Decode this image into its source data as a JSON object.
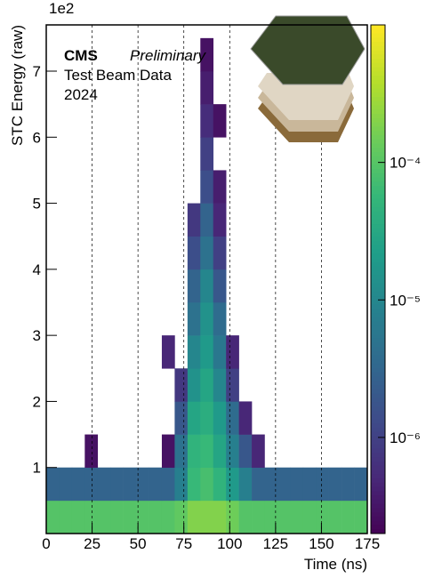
{
  "chart_data": {
    "type": "heatmap",
    "xlabel": "Time (ns)",
    "ylabel": "STC Energy (raw)",
    "y_multiplier": "1e2",
    "annotations": {
      "experiment": "CMS",
      "status": "Preliminary",
      "line1": "Test Beam Data",
      "line2": "2024"
    },
    "xlim": [
      0,
      175
    ],
    "xticks": [
      0,
      25,
      50,
      75,
      100,
      125,
      150,
      175
    ],
    "ylim": [
      0,
      7.7
    ],
    "yticks": [
      1,
      2,
      3,
      4,
      5,
      6,
      7
    ],
    "grid": true,
    "colormap": "viridis",
    "zscale": "log",
    "zlim": [
      2e-07,
      0.001
    ],
    "zticks": [
      {
        "value": 1e-06,
        "label": "10⁻⁶"
      },
      {
        "value": 1e-05,
        "label": "10⁻⁵"
      },
      {
        "value": 0.0001,
        "label": "10⁻⁴"
      }
    ],
    "xbins": [
      0,
      7,
      14,
      21,
      28,
      35,
      42,
      49,
      56,
      63,
      70,
      77,
      84,
      91,
      98,
      105,
      112,
      119,
      126,
      133,
      140,
      147,
      154,
      161,
      168,
      175
    ],
    "ybins": [
      0,
      0.5,
      1,
      1.5,
      2,
      2.5,
      3,
      3.5,
      4,
      4.5,
      5,
      5.5,
      6,
      6.5,
      7,
      7.5
    ],
    "z": [
      [
        0.0001,
        0.0001,
        0.0001,
        0.0001,
        0.0001,
        0.0001,
        0.0001,
        0.0001,
        0.0001,
        0.0001,
        0.00012,
        0.0002,
        0.0002,
        0.0002,
        0.00015,
        0.0001,
        0.0001,
        0.0001,
        0.0001,
        0.0001,
        0.0001,
        0.0001,
        0.0001,
        0.0001,
        0.0001
      ],
      [
        3e-06,
        3e-06,
        3e-06,
        3e-06,
        3e-06,
        3e-06,
        3e-06,
        3e-06,
        3e-06,
        3e-06,
        8e-06,
        6e-05,
        8e-05,
        5e-05,
        2e-05,
        8e-06,
        3e-06,
        3e-06,
        3e-06,
        3e-06,
        3e-06,
        3e-06,
        3e-06,
        3e-06,
        3e-06
      ],
      [
        null,
        null,
        null,
        3e-07,
        null,
        null,
        null,
        null,
        null,
        3e-07,
        5e-06,
        5e-05,
        6e-05,
        3e-05,
        8e-06,
        2e-06,
        5e-07,
        null,
        null,
        null,
        null,
        null,
        null,
        null,
        null
      ],
      [
        null,
        null,
        null,
        null,
        null,
        null,
        null,
        null,
        null,
        null,
        2e-06,
        3e-05,
        4e-05,
        2e-05,
        4e-06,
        5e-07,
        null,
        null,
        null,
        null,
        null,
        null,
        null,
        null,
        null
      ],
      [
        null,
        null,
        null,
        null,
        null,
        null,
        null,
        null,
        null,
        null,
        8e-07,
        1.5e-05,
        3e-05,
        1e-05,
        1e-06,
        null,
        null,
        null,
        null,
        null,
        null,
        null,
        null,
        null,
        null
      ],
      [
        null,
        null,
        null,
        null,
        null,
        null,
        null,
        null,
        null,
        5e-07,
        null,
        1e-05,
        2e-05,
        6e-06,
        5e-07,
        null,
        null,
        null,
        null,
        null,
        null,
        null,
        null,
        null,
        null
      ],
      [
        null,
        null,
        null,
        null,
        null,
        null,
        null,
        null,
        null,
        null,
        null,
        5e-06,
        1.5e-05,
        4e-06,
        null,
        null,
        null,
        null,
        null,
        null,
        null,
        null,
        null,
        null,
        null
      ],
      [
        null,
        null,
        null,
        null,
        null,
        null,
        null,
        null,
        null,
        null,
        null,
        3e-06,
        1e-05,
        2e-06,
        null,
        null,
        null,
        null,
        null,
        null,
        null,
        null,
        null,
        null,
        null
      ],
      [
        null,
        null,
        null,
        null,
        null,
        null,
        null,
        null,
        null,
        null,
        null,
        1.5e-06,
        5e-06,
        1e-06,
        null,
        null,
        null,
        null,
        null,
        null,
        null,
        null,
        null,
        null,
        null
      ],
      [
        null,
        null,
        null,
        null,
        null,
        null,
        null,
        null,
        null,
        null,
        null,
        8e-07,
        3e-06,
        5e-07,
        null,
        null,
        null,
        null,
        null,
        null,
        null,
        null,
        null,
        null,
        null
      ],
      [
        null,
        null,
        null,
        null,
        null,
        null,
        null,
        null,
        null,
        null,
        null,
        null,
        1.5e-06,
        4e-07,
        null,
        null,
        null,
        null,
        null,
        null,
        null,
        null,
        null,
        null,
        null
      ],
      [
        null,
        null,
        null,
        null,
        null,
        null,
        null,
        null,
        null,
        null,
        null,
        null,
        1e-06,
        null,
        null,
        null,
        null,
        null,
        null,
        null,
        null,
        null,
        null,
        null,
        null
      ],
      [
        null,
        null,
        null,
        null,
        null,
        null,
        null,
        null,
        null,
        null,
        null,
        null,
        6e-07,
        3e-07,
        null,
        null,
        null,
        null,
        null,
        null,
        null,
        null,
        null,
        null,
        null
      ],
      [
        null,
        null,
        null,
        null,
        null,
        null,
        null,
        null,
        null,
        null,
        null,
        null,
        4e-07,
        null,
        null,
        null,
        null,
        null,
        null,
        null,
        null,
        null,
        null,
        null,
        null
      ],
      [
        null,
        null,
        null,
        null,
        null,
        null,
        null,
        null,
        null,
        null,
        null,
        null,
        3e-07,
        null,
        null,
        null,
        null,
        null,
        null,
        null,
        null,
        null,
        null,
        null,
        null
      ]
    ]
  }
}
